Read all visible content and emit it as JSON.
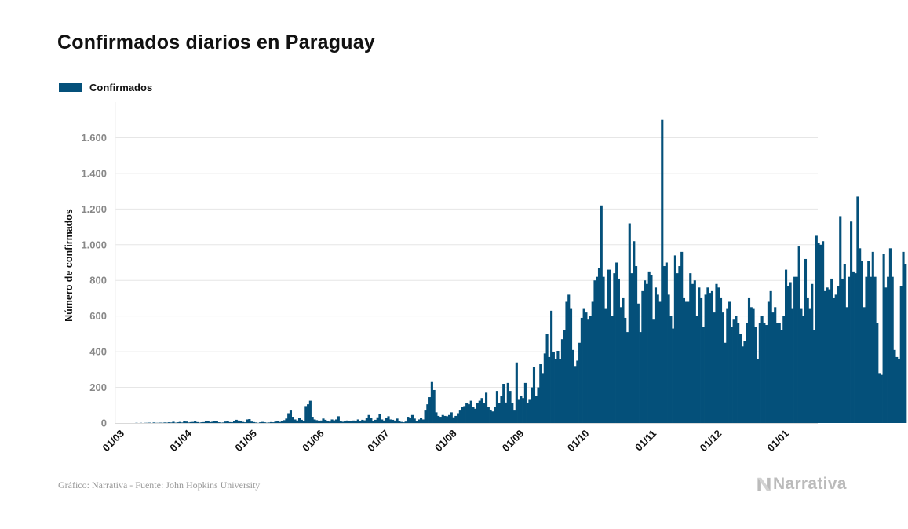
{
  "chart_data": {
    "type": "bar",
    "title": "Confirmados diarios en Paraguay",
    "ylabel": "Número de confirmados",
    "xlabel": "",
    "ylim": [
      0,
      1800
    ],
    "yticks": [
      0,
      200,
      400,
      600,
      800,
      1000,
      1200,
      1400,
      1600
    ],
    "ytick_labels": [
      "0",
      "200",
      "400",
      "600",
      "800",
      "1.000",
      "1.200",
      "1.400",
      "1.600"
    ],
    "x_start": "2020-03-01",
    "x_ticks": [
      {
        "date": "2020-03-01",
        "label": "01/03"
      },
      {
        "date": "2020-04-01",
        "label": "01/04"
      },
      {
        "date": "2020-05-01",
        "label": "01/05"
      },
      {
        "date": "2020-06-01",
        "label": "01/06"
      },
      {
        "date": "2020-07-01",
        "label": "01/07"
      },
      {
        "date": "2020-08-01",
        "label": "01/08"
      },
      {
        "date": "2020-09-01",
        "label": "01/09"
      },
      {
        "date": "2020-10-01",
        "label": "01/10"
      },
      {
        "date": "2020-11-01",
        "label": "01/11"
      },
      {
        "date": "2020-12-01",
        "label": "01/12"
      },
      {
        "date": "2021-01-01",
        "label": "01/01"
      }
    ],
    "grid": true,
    "legend": "top-left",
    "series": [
      {
        "name": "Confirmados",
        "color": "#04507a",
        "values": [
          0,
          0,
          0,
          0,
          0,
          0,
          0,
          1,
          0,
          1,
          0,
          1,
          1,
          2,
          0,
          3,
          1,
          1,
          2,
          1,
          3,
          2,
          4,
          3,
          7,
          2,
          4,
          6,
          3,
          9,
          8,
          3,
          5,
          6,
          9,
          5,
          2,
          4,
          5,
          12,
          9,
          5,
          7,
          11,
          9,
          4,
          2,
          3,
          8,
          11,
          5,
          4,
          9,
          18,
          14,
          10,
          6,
          4,
          20,
          22,
          8,
          5,
          3,
          1,
          4,
          6,
          4,
          2,
          3,
          5,
          4,
          8,
          12,
          6,
          10,
          16,
          25,
          55,
          70,
          35,
          20,
          14,
          30,
          18,
          12,
          95,
          105,
          125,
          35,
          20,
          16,
          11,
          14,
          25,
          18,
          12,
          8,
          20,
          15,
          20,
          38,
          12,
          7,
          10,
          14,
          9,
          11,
          14,
          10,
          20,
          9,
          18,
          15,
          30,
          45,
          28,
          13,
          18,
          32,
          50,
          20,
          14,
          30,
          38,
          20,
          18,
          14,
          25,
          10,
          6,
          4,
          8,
          35,
          30,
          45,
          25,
          12,
          20,
          30,
          20,
          70,
          105,
          145,
          230,
          185,
          60,
          40,
          35,
          45,
          40,
          38,
          45,
          60,
          32,
          40,
          55,
          70,
          90,
          95,
          110,
          105,
          125,
          90,
          80,
          110,
          125,
          140,
          110,
          170,
          90,
          75,
          65,
          90,
          180,
          110,
          150,
          220,
          115,
          225,
          180,
          110,
          70,
          340,
          130,
          150,
          140,
          225,
          110,
          130,
          200,
          315,
          150,
          200,
          330,
          280,
          390,
          500,
          370,
          630,
          400,
          360,
          405,
          360,
          470,
          520,
          680,
          720,
          640,
          410,
          320,
          350,
          450,
          590,
          640,
          620,
          580,
          600,
          680,
          800,
          820,
          870,
          1220,
          820,
          640,
          860,
          860,
          600,
          840,
          900,
          810,
          650,
          700,
          590,
          510,
          1120,
          840,
          1020,
          880,
          670,
          510,
          740,
          800,
          780,
          850,
          830,
          580,
          760,
          720,
          680,
          1700,
          880,
          900,
          720,
          600,
          530,
          940,
          840,
          880,
          960,
          700,
          680,
          680,
          840,
          780,
          800,
          600,
          760,
          700,
          540,
          720,
          760,
          730,
          740,
          620,
          780,
          760,
          700,
          620,
          450,
          640,
          680,
          540,
          580,
          600,
          560,
          500,
          430,
          460,
          560,
          700,
          650,
          640,
          540,
          360,
          560,
          600,
          560,
          550,
          680,
          740,
          620,
          650,
          560,
          560,
          520,
          600,
          860,
          770,
          790,
          640,
          820,
          820,
          990,
          640,
          600,
          920,
          700,
          640,
          780,
          520,
          1050,
          1010,
          1000,
          1020,
          740,
          760,
          750,
          810,
          700,
          720,
          770,
          1160,
          810,
          890,
          650,
          820,
          1130,
          850,
          840,
          1270,
          980,
          910,
          650,
          820,
          910,
          820,
          960,
          820,
          560,
          280,
          270,
          950,
          760,
          820,
          980,
          820,
          410,
          370,
          360,
          770,
          960,
          890
        ]
      }
    ],
    "source": "Gráfico: Narrativa - Fuente: John Hopkins University",
    "brand": "Narrativa"
  }
}
